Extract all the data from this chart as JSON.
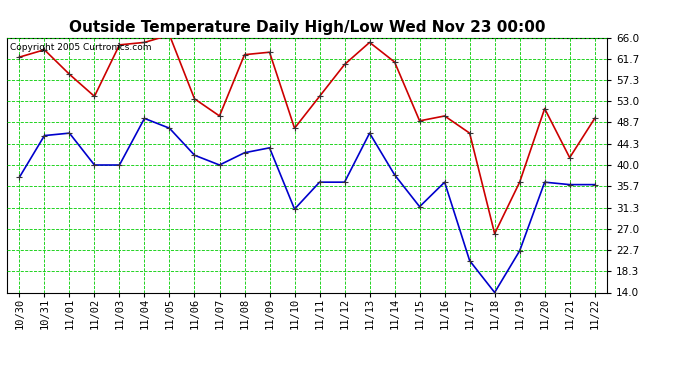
{
  "title": "Outside Temperature Daily High/Low Wed Nov 23 00:00",
  "copyright_text": "Copyright 2005 Curtronics.com",
  "x_labels": [
    "10/30",
    "10/31",
    "11/01",
    "11/02",
    "11/03",
    "11/04",
    "11/05",
    "11/06",
    "11/07",
    "11/08",
    "11/09",
    "11/10",
    "11/11",
    "11/12",
    "11/13",
    "11/14",
    "11/15",
    "11/16",
    "11/17",
    "11/18",
    "11/19",
    "11/20",
    "11/21",
    "11/22"
  ],
  "high_values": [
    62.0,
    63.5,
    58.5,
    54.0,
    64.5,
    65.0,
    66.5,
    53.5,
    50.0,
    62.5,
    63.0,
    47.5,
    54.0,
    60.5,
    65.0,
    61.0,
    49.0,
    50.0,
    46.5,
    26.0,
    36.5,
    51.5,
    41.5,
    49.5
  ],
  "low_values": [
    37.5,
    46.0,
    46.5,
    40.0,
    40.0,
    49.5,
    47.5,
    42.0,
    40.0,
    42.5,
    43.5,
    31.0,
    36.5,
    36.5,
    46.5,
    38.0,
    31.5,
    36.5,
    20.5,
    14.0,
    22.5,
    36.5,
    36.0,
    36.0
  ],
  "high_color": "#cc0000",
  "low_color": "#0000cc",
  "bg_color": "#ffffff",
  "grid_color": "#00cc00",
  "ylim_min": 14.0,
  "ylim_max": 66.0,
  "yticks": [
    14.0,
    18.3,
    22.7,
    27.0,
    31.3,
    35.7,
    40.0,
    44.3,
    48.7,
    53.0,
    57.3,
    61.7,
    66.0
  ],
  "title_fontsize": 11,
  "tick_fontsize": 7.5,
  "copyright_fontsize": 6.5
}
